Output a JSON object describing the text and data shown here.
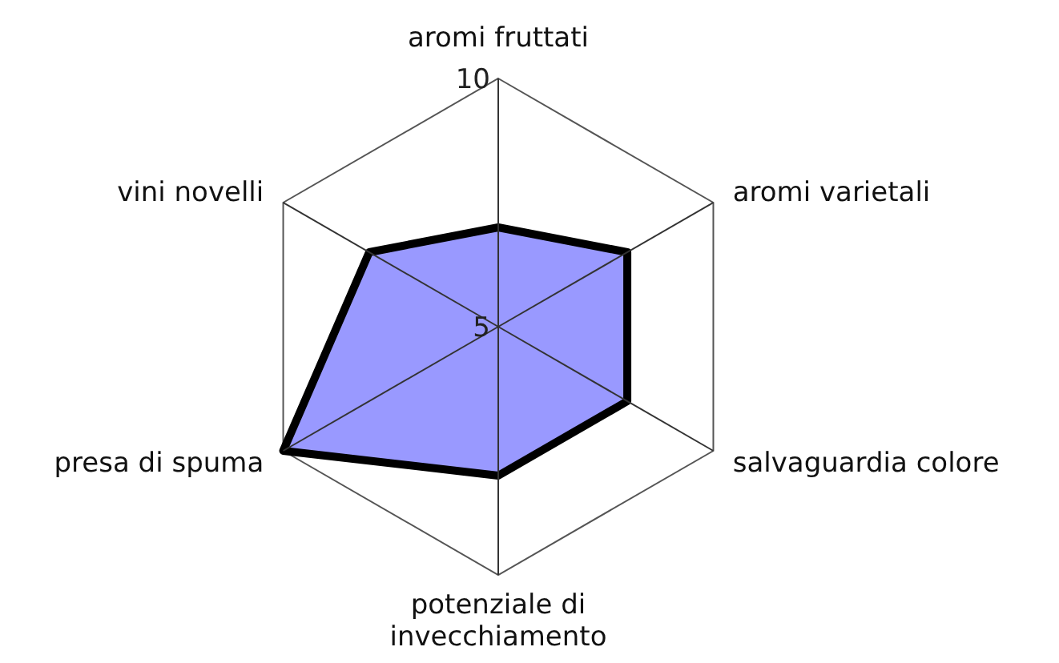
{
  "chart_data": {
    "type": "radar",
    "categories": [
      "aromi fruttati",
      "aromi varietali",
      "salvaguardia colore",
      "potenziale di invecchiamento",
      "presa di spuma",
      "vini novelli"
    ],
    "series": [
      {
        "color": "#9999ff",
        "values": [
          7,
          8,
          8,
          8,
          10,
          8
        ]
      }
    ],
    "ylim": [
      5,
      10
    ],
    "yticks": [
      5,
      10
    ],
    "grid": true
  }
}
